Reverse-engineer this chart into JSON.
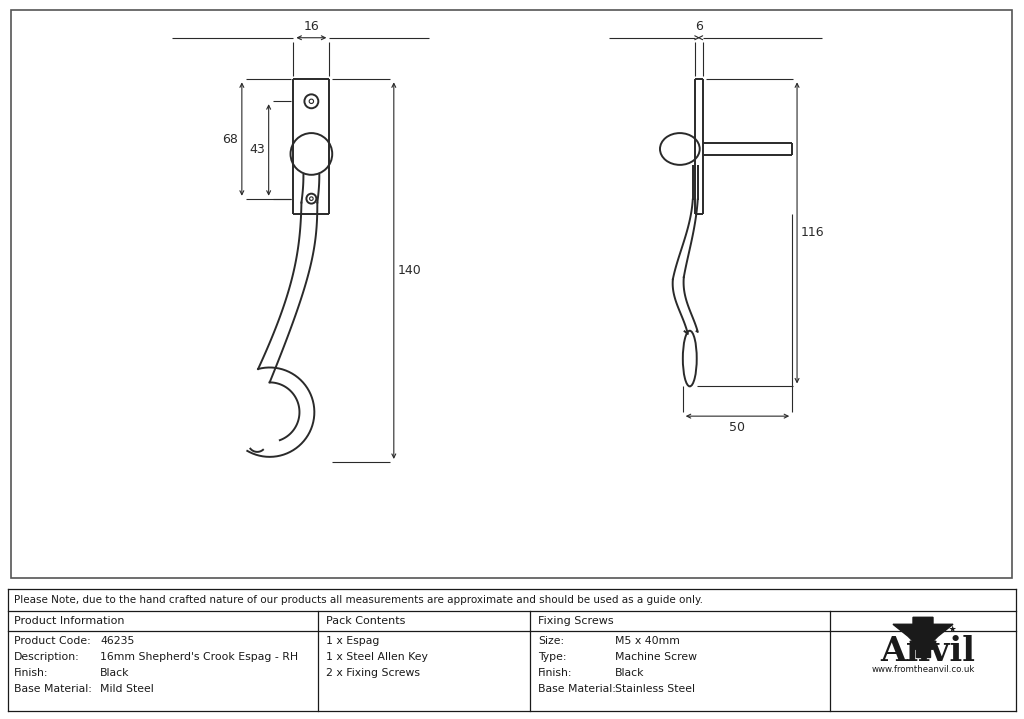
{
  "bg_color": "#ffffff",
  "line_color": "#2a2a2a",
  "dim_color": "#2a2a2a",
  "note_text": "Please Note, due to the hand crafted nature of our products all measurements are approximate and should be used as a guide only.",
  "product_info": {
    "header": "Product Information",
    "rows": [
      [
        "Product Code:",
        "46235"
      ],
      [
        "Description:",
        "16mm Shepherd's Crook Espag - RH"
      ],
      [
        "Finish:",
        "Black"
      ],
      [
        "Base Material:",
        "Mild Steel"
      ]
    ]
  },
  "pack_contents": {
    "header": "Pack Contents",
    "rows": [
      [
        "1 x Espag"
      ],
      [
        "1 x Steel Allen Key"
      ],
      [
        "2 x Fixing Screws"
      ]
    ]
  },
  "fixing_screws": {
    "header": "Fixing Screws",
    "rows": [
      [
        "Size:",
        "M5 x 40mm"
      ],
      [
        "Type:",
        "Machine Screw"
      ],
      [
        "Finish:",
        "Black"
      ],
      [
        "Base Material:",
        "Stainless Steel"
      ]
    ]
  },
  "dims": {
    "width_16": "16",
    "width_6": "6",
    "height_68": "68",
    "height_43": "43",
    "height_140": "140",
    "height_116": "116",
    "width_50": "50"
  }
}
